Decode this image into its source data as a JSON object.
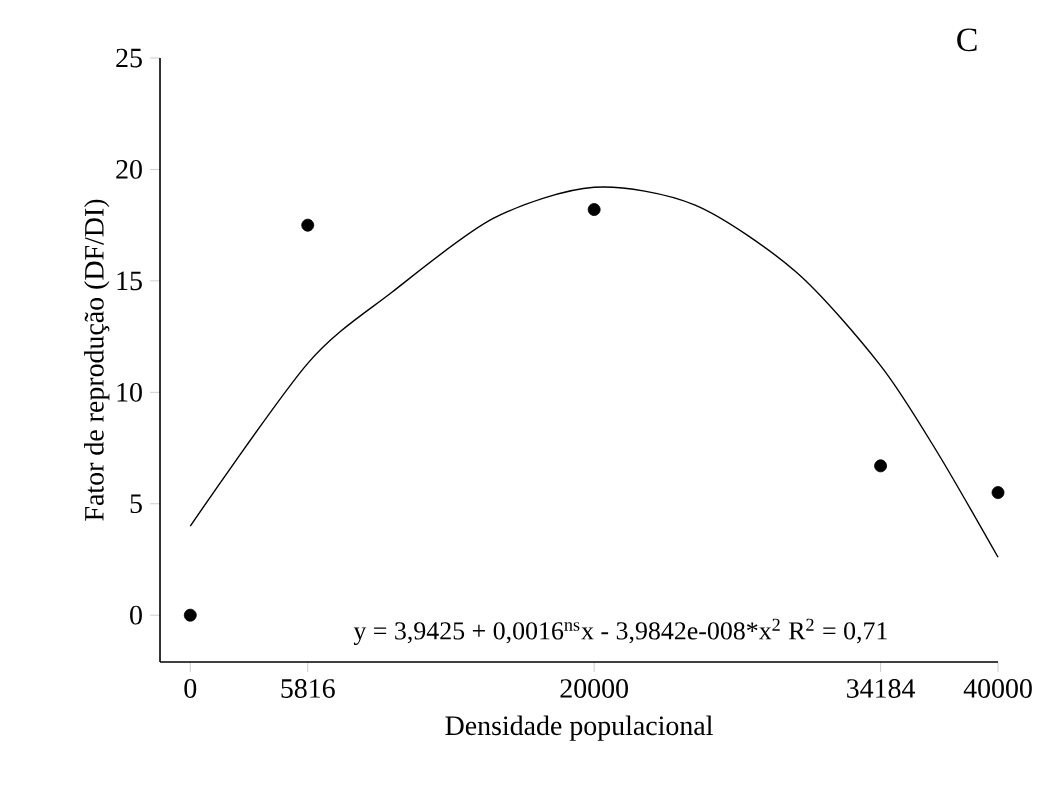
{
  "chart_data": {
    "type": "scatter",
    "xlabel": "Densidade populacional",
    "ylabel": "Fator de reprodução (DF/DI)",
    "xlim": [
      -1500,
      40000
    ],
    "ylim": [
      -2.1,
      25
    ],
    "xticks": [
      0,
      5816,
      20000,
      34184,
      40000
    ],
    "yticks": [
      0,
      5,
      10,
      15,
      20,
      25
    ],
    "marker": "circle",
    "series": [
      {
        "color": "#000000",
        "x": [
          0,
          5816,
          20000,
          34184,
          40000
        ],
        "values": [
          0,
          17.5,
          18.2,
          6.7,
          5.5
        ]
      },
      {
        "type": "line",
        "color": "#000000",
        "marker": "none",
        "line_style": "solid",
        "x": [
          0,
          5816,
          10000,
          15000,
          20000,
          25000,
          30000,
          34184,
          37000,
          40000
        ],
        "values": [
          4.0,
          11.3,
          14.5,
          17.8,
          19.2,
          18.4,
          15.4,
          11.2,
          7.3,
          2.6
        ]
      }
    ],
    "annotations": [
      "y = 3,9425 + 0,0016$^{ns}$x - 3,9842e-008*x$^{2}$ R$^{2}$ = 0,71",
      "C"
    ]
  }
}
